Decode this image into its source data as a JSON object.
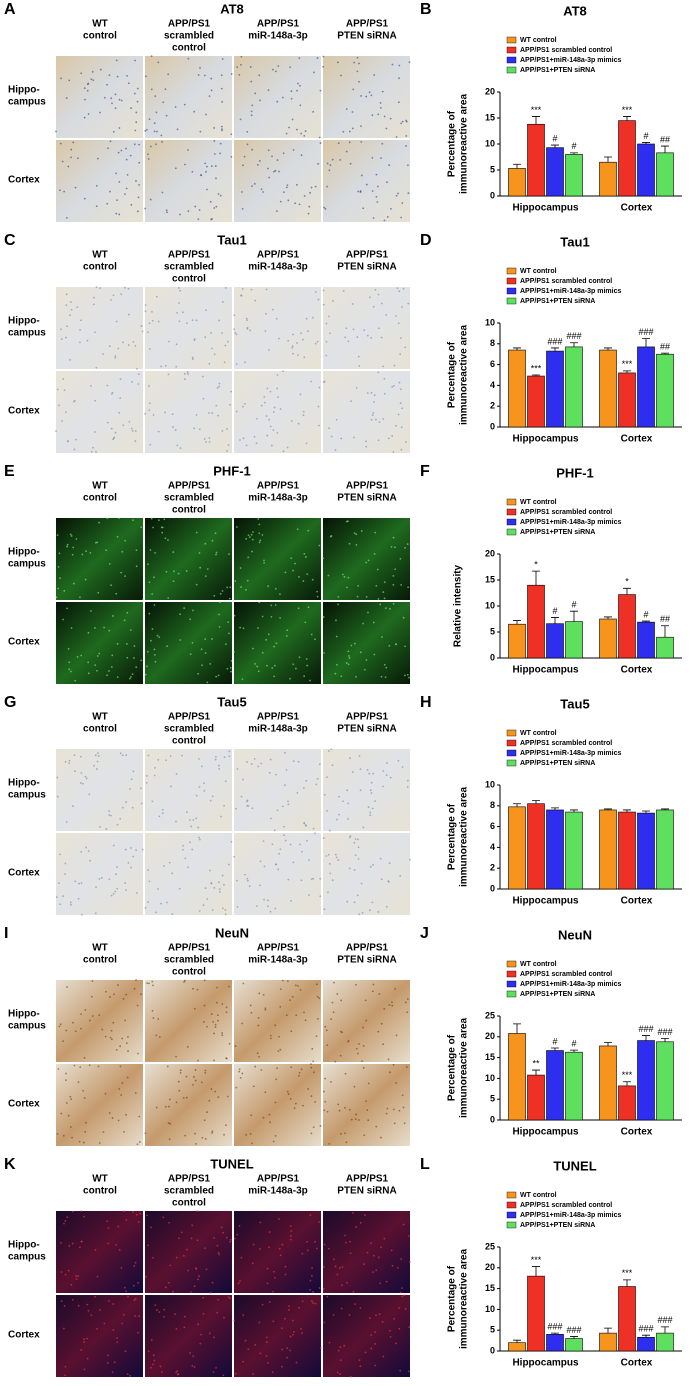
{
  "image_panels": {
    "columns": [
      [
        "WT",
        "control"
      ],
      [
        "APP/PS1",
        "scrambled",
        "control"
      ],
      [
        "APP/PS1",
        "miR-148a-3p"
      ],
      [
        "APP/PS1",
        "PTEN siRNA"
      ]
    ],
    "rows": [
      [
        "Hippo-",
        "campus"
      ],
      [
        "Cortex"
      ]
    ],
    "panels": [
      {
        "letter": "A",
        "title": "AT8"
      },
      {
        "letter": "C",
        "title": "Tau1"
      },
      {
        "letter": "E",
        "title": "PHF-1"
      },
      {
        "letter": "G",
        "title": "Tau5"
      },
      {
        "letter": "I",
        "title": "NeuN"
      },
      {
        "letter": "K",
        "title": "TUNEL"
      }
    ]
  },
  "chart_data": [
    {
      "type": "bar",
      "letter": "B",
      "title": "AT8",
      "ylabel": [
        "Percentage of",
        "immunoreactive area"
      ],
      "categories": [
        "Hippocampus",
        "Cortex"
      ],
      "ylim": [
        0,
        20
      ],
      "yticks": [
        0,
        5,
        10,
        15,
        20
      ],
      "series": [
        {
          "name": "WT control",
          "color": "#f7941d",
          "values": [
            5.3,
            6.5
          ],
          "errors": [
            0.8,
            1.0
          ],
          "annotations": [
            null,
            null
          ]
        },
        {
          "name": "APP/PS1 scrambled control",
          "color": "#ee3124",
          "values": [
            13.8,
            14.5
          ],
          "errors": [
            1.5,
            0.8
          ],
          "annotations": [
            "***",
            "***"
          ]
        },
        {
          "name": "APP/PS1+miR-148a-3p mimics",
          "color": "#2e2ef0",
          "values": [
            9.3,
            10.0
          ],
          "errors": [
            0.5,
            0.3
          ],
          "annotations": [
            "#",
            "#"
          ]
        },
        {
          "name": "APP/PS1+PTEN siRNA",
          "color": "#5ee05e",
          "values": [
            8.0,
            8.3
          ],
          "errors": [
            0.3,
            1.3
          ],
          "annotations": [
            "#",
            "##"
          ]
        }
      ]
    },
    {
      "type": "bar",
      "letter": "D",
      "title": "Tau1",
      "ylabel": [
        "Percentage of",
        "immunoreactive area"
      ],
      "categories": [
        "Hippocampus",
        "Cortex"
      ],
      "ylim": [
        0,
        10
      ],
      "yticks": [
        0,
        2,
        4,
        6,
        8,
        10
      ],
      "series": [
        {
          "name": "WT control",
          "color": "#f7941d",
          "values": [
            7.4,
            7.4
          ],
          "errors": [
            0.2,
            0.2
          ],
          "annotations": [
            null,
            null
          ]
        },
        {
          "name": "APP/PS1 scrambled control",
          "color": "#ee3124",
          "values": [
            4.9,
            5.2
          ],
          "errors": [
            0.1,
            0.2
          ],
          "annotations": [
            "***",
            "***"
          ]
        },
        {
          "name": "APP/PS1+miR-148a-3p mimics",
          "color": "#2e2ef0",
          "values": [
            7.3,
            7.7
          ],
          "errors": [
            0.3,
            0.8
          ],
          "annotations": [
            "###",
            "###"
          ]
        },
        {
          "name": "APP/PS1+PTEN siRNA",
          "color": "#5ee05e",
          "values": [
            7.7,
            7.0
          ],
          "errors": [
            0.4,
            0.1
          ],
          "annotations": [
            "###",
            "##"
          ]
        }
      ]
    },
    {
      "type": "bar",
      "letter": "F",
      "title": "PHF-1",
      "ylabel": [
        "Relative intensity"
      ],
      "categories": [
        "Hippocampus",
        "Cortex"
      ],
      "ylim": [
        0,
        20
      ],
      "yticks": [
        0,
        5,
        10,
        15,
        20
      ],
      "series": [
        {
          "name": "WT control",
          "color": "#f7941d",
          "values": [
            6.5,
            7.5
          ],
          "errors": [
            0.7,
            0.4
          ],
          "annotations": [
            null,
            null
          ]
        },
        {
          "name": "APP/PS1 scrambled control",
          "color": "#ee3124",
          "values": [
            14.0,
            12.2
          ],
          "errors": [
            2.7,
            1.2
          ],
          "annotations": [
            "*",
            "*"
          ]
        },
        {
          "name": "APP/PS1+miR-148a-3p mimics",
          "color": "#2e2ef0",
          "values": [
            6.6,
            6.9
          ],
          "errors": [
            1.2,
            0.2
          ],
          "annotations": [
            "#",
            "#"
          ]
        },
        {
          "name": "APP/PS1+PTEN siRNA",
          "color": "#5ee05e",
          "values": [
            7.0,
            4.0
          ],
          "errors": [
            2.0,
            2.2
          ],
          "annotations": [
            "#",
            "##"
          ]
        }
      ]
    },
    {
      "type": "bar",
      "letter": "H",
      "title": "Tau5",
      "ylabel": [
        "Percentage of",
        "immunoreactive area"
      ],
      "categories": [
        "Hippocampus",
        "Cortex"
      ],
      "ylim": [
        0,
        10
      ],
      "yticks": [
        0,
        2,
        4,
        6,
        8,
        10
      ],
      "series": [
        {
          "name": "WT control",
          "color": "#f7941d",
          "values": [
            7.9,
            7.6
          ],
          "errors": [
            0.3,
            0.1
          ],
          "annotations": [
            null,
            null
          ]
        },
        {
          "name": "APP/PS1 scrambled control",
          "color": "#ee3124",
          "values": [
            8.2,
            7.4
          ],
          "errors": [
            0.3,
            0.2
          ],
          "annotations": [
            null,
            null
          ]
        },
        {
          "name": "APP/PS1+miR-148a-3p mimics",
          "color": "#2e2ef0",
          "values": [
            7.6,
            7.3
          ],
          "errors": [
            0.2,
            0.2
          ],
          "annotations": [
            null,
            null
          ]
        },
        {
          "name": "APP/PS1+PTEN siRNA",
          "color": "#5ee05e",
          "values": [
            7.4,
            7.6
          ],
          "errors": [
            0.2,
            0.1
          ],
          "annotations": [
            null,
            null
          ]
        }
      ]
    },
    {
      "type": "bar",
      "letter": "J",
      "title": "NeuN",
      "ylabel": [
        "Percentage of",
        "immunoreactive area"
      ],
      "categories": [
        "Hippocampus",
        "Cortex"
      ],
      "ylim": [
        0,
        25
      ],
      "yticks": [
        0,
        5,
        10,
        15,
        20,
        25
      ],
      "series": [
        {
          "name": "WT control",
          "color": "#f7941d",
          "values": [
            20.8,
            17.8
          ],
          "errors": [
            2.3,
            0.8
          ],
          "annotations": [
            null,
            null
          ]
        },
        {
          "name": "APP/PS1 scrambled control",
          "color": "#ee3124",
          "values": [
            10.8,
            8.2
          ],
          "errors": [
            1.2,
            1.0
          ],
          "annotations": [
            "**",
            "***"
          ]
        },
        {
          "name": "APP/PS1+miR-148a-3p mimics",
          "color": "#2e2ef0",
          "values": [
            16.7,
            19.1
          ],
          "errors": [
            0.6,
            1.2
          ],
          "annotations": [
            "#",
            "###"
          ]
        },
        {
          "name": "APP/PS1+PTEN siRNA",
          "color": "#5ee05e",
          "values": [
            16.3,
            18.8
          ],
          "errors": [
            0.5,
            0.8
          ],
          "annotations": [
            "#",
            "###"
          ]
        }
      ]
    },
    {
      "type": "bar",
      "letter": "L",
      "title": "TUNEL",
      "ylabel": [
        "Percentage of",
        "immunoreactive area"
      ],
      "categories": [
        "Hippocampus",
        "Cortex"
      ],
      "ylim": [
        0,
        25
      ],
      "yticks": [
        0,
        5,
        10,
        15,
        20,
        25
      ],
      "series": [
        {
          "name": "WT control",
          "color": "#f7941d",
          "values": [
            2.0,
            4.3
          ],
          "errors": [
            0.6,
            1.2
          ],
          "annotations": [
            null,
            null
          ]
        },
        {
          "name": "APP/PS1 scrambled control",
          "color": "#ee3124",
          "values": [
            18.0,
            15.5
          ],
          "errors": [
            2.3,
            1.6
          ],
          "annotations": [
            "***",
            "***"
          ]
        },
        {
          "name": "APP/PS1+miR-148a-3p mimics",
          "color": "#2e2ef0",
          "values": [
            4.0,
            3.3
          ],
          "errors": [
            0.3,
            0.5
          ],
          "annotations": [
            "###",
            "###"
          ]
        },
        {
          "name": "APP/PS1+PTEN siRNA",
          "color": "#5ee05e",
          "values": [
            3.0,
            4.3
          ],
          "errors": [
            0.5,
            1.5
          ],
          "annotations": [
            "###",
            "###"
          ]
        }
      ]
    }
  ]
}
